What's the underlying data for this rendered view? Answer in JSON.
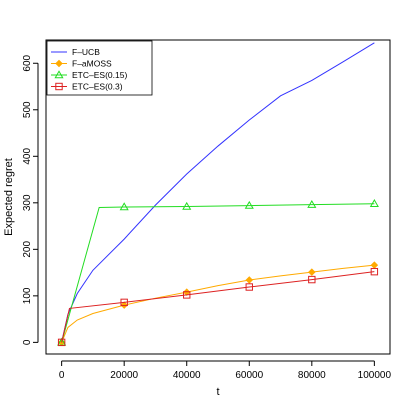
{
  "chart_data": {
    "type": "line",
    "title": "",
    "xlabel": "t",
    "ylabel": "Expected regret",
    "xlim": [
      -5000,
      105000
    ],
    "ylim": [
      -25,
      650
    ],
    "xticks": [
      0,
      20000,
      40000,
      60000,
      80000,
      100000
    ],
    "xtick_labels": [
      "0",
      "20000",
      "40000",
      "60000",
      "80000",
      "100000"
    ],
    "yticks": [
      0,
      100,
      200,
      300,
      400,
      500,
      600
    ],
    "ytick_labels": [
      "0",
      "100",
      "200",
      "300",
      "400",
      "500",
      "600"
    ],
    "grid": false,
    "legend_position": "top-left",
    "series": [
      {
        "name": "F–UCB",
        "color": "#3333ff",
        "marker": "none",
        "x": [
          0,
          2000,
          5000,
          10000,
          20000,
          30000,
          40000,
          50000,
          60000,
          70000,
          80000,
          90000,
          100000
        ],
        "y": [
          0,
          60,
          105,
          155,
          222,
          295,
          362,
          422,
          478,
          530,
          563,
          603,
          644
        ]
      },
      {
        "name": "F–aMOSS",
        "color": "#ffaa00",
        "marker": "diamond",
        "x": [
          0,
          2000,
          5000,
          10000,
          20000,
          30000,
          40000,
          50000,
          60000,
          70000,
          80000,
          90000,
          100000
        ],
        "y": [
          0,
          32,
          48,
          62,
          80,
          95,
          108,
          122,
          134,
          143,
          151,
          159,
          166
        ],
        "marker_x": [
          0,
          20000,
          40000,
          60000,
          80000,
          100000
        ]
      },
      {
        "name": "ETC–ES(0.15)",
        "color": "#22dd22",
        "marker": "triangle",
        "x": [
          0,
          12000,
          20000,
          40000,
          60000,
          80000,
          100000
        ],
        "y": [
          0,
          290,
          291,
          292,
          294,
          296,
          298
        ],
        "marker_x": [
          0,
          20000,
          40000,
          60000,
          80000,
          100000
        ]
      },
      {
        "name": "ETC–ES(0.3)",
        "color": "#dd2222",
        "marker": "square",
        "x": [
          0,
          2500,
          20000,
          40000,
          60000,
          80000,
          100000
        ],
        "y": [
          0,
          73,
          86,
          102,
          119,
          135,
          152
        ],
        "marker_x": [
          0,
          20000,
          40000,
          60000,
          80000,
          100000
        ]
      }
    ]
  }
}
